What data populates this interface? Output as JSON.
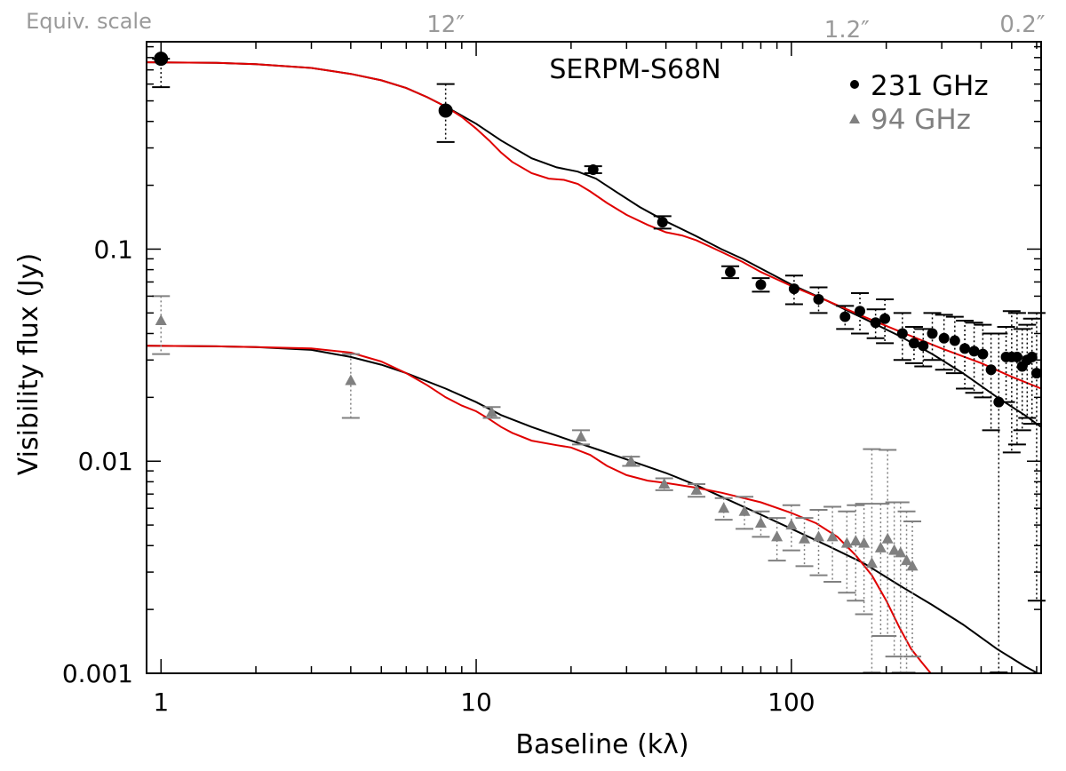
{
  "chart_data": {
    "type": "scatter",
    "title": "SERPM-S68N",
    "xlabel": "Baseline (kλ)",
    "ylabel": "Visibility flux (Jy)",
    "x_scale": "log",
    "y_scale": "log",
    "xlim": [
      0.9,
      620
    ],
    "ylim": [
      0.001,
      0.95
    ],
    "x_ticks": [
      {
        "value": 1,
        "label": "1"
      },
      {
        "value": 10,
        "label": "10"
      },
      {
        "value": 100,
        "label": "100"
      }
    ],
    "y_ticks": [
      {
        "value": 0.001,
        "label": "0.001"
      },
      {
        "value": 0.01,
        "label": "0.01"
      },
      {
        "value": 0.1,
        "label": "0.1"
      }
    ],
    "top_axis": {
      "label": "Equiv. scale",
      "ticks": [
        {
          "x": 8,
          "label": "12″"
        },
        {
          "x": 150,
          "label": "1.2″"
        },
        {
          "x": 600,
          "label": "0.2″"
        }
      ]
    },
    "grid": false,
    "legend_position": "top-right",
    "colors": {
      "series_231": "#000000",
      "series_94": "#808080",
      "model_red": "#e00000",
      "model_black": "#000000"
    },
    "series": [
      {
        "name": "231 GHz",
        "marker": "circle",
        "color": "#000000",
        "points": [
          {
            "x": 1.0,
            "y": 0.79,
            "lo": 0.58,
            "hi": 0.79
          },
          {
            "x": 8.0,
            "y": 0.45,
            "lo": 0.32,
            "hi": 0.6
          },
          {
            "x": 23.5,
            "y": 0.237,
            "lo": 0.228,
            "hi": 0.246
          },
          {
            "x": 39.0,
            "y": 0.134,
            "lo": 0.125,
            "hi": 0.143
          },
          {
            "x": 64.0,
            "y": 0.078,
            "lo": 0.073,
            "hi": 0.083
          },
          {
            "x": 80.0,
            "y": 0.068,
            "lo": 0.063,
            "hi": 0.073
          },
          {
            "x": 102.0,
            "y": 0.065,
            "lo": 0.055,
            "hi": 0.075
          },
          {
            "x": 122.0,
            "y": 0.058,
            "lo": 0.05,
            "hi": 0.066
          },
          {
            "x": 148.0,
            "y": 0.048,
            "lo": 0.042,
            "hi": 0.054
          },
          {
            "x": 165.0,
            "y": 0.051,
            "lo": 0.04,
            "hi": 0.062
          },
          {
            "x": 185.0,
            "y": 0.045,
            "lo": 0.038,
            "hi": 0.052
          },
          {
            "x": 198.0,
            "y": 0.047,
            "lo": 0.036,
            "hi": 0.058
          },
          {
            "x": 225.0,
            "y": 0.04,
            "lo": 0.03,
            "hi": 0.05
          },
          {
            "x": 245.0,
            "y": 0.036,
            "lo": 0.029,
            "hi": 0.043
          },
          {
            "x": 262.0,
            "y": 0.035,
            "lo": 0.028,
            "hi": 0.042
          },
          {
            "x": 280.0,
            "y": 0.04,
            "lo": 0.03,
            "hi": 0.05
          },
          {
            "x": 305.0,
            "y": 0.038,
            "lo": 0.027,
            "hi": 0.049
          },
          {
            "x": 330.0,
            "y": 0.037,
            "lo": 0.026,
            "hi": 0.048
          },
          {
            "x": 355.0,
            "y": 0.034,
            "lo": 0.022,
            "hi": 0.046
          },
          {
            "x": 380.0,
            "y": 0.033,
            "lo": 0.021,
            "hi": 0.045
          },
          {
            "x": 405.0,
            "y": 0.032,
            "lo": 0.02,
            "hi": 0.044
          },
          {
            "x": 430.0,
            "y": 0.027,
            "lo": 0.014,
            "hi": 0.04
          },
          {
            "x": 455.0,
            "y": 0.019,
            "lo": 0.001,
            "hi": 0.04
          },
          {
            "x": 480.0,
            "y": 0.031,
            "lo": 0.019,
            "hi": 0.043
          },
          {
            "x": 500.0,
            "y": 0.031,
            "lo": 0.011,
            "hi": 0.051
          },
          {
            "x": 520.0,
            "y": 0.031,
            "lo": 0.012,
            "hi": 0.05
          },
          {
            "x": 540.0,
            "y": 0.028,
            "lo": 0.014,
            "hi": 0.042
          },
          {
            "x": 560.0,
            "y": 0.03,
            "lo": 0.016,
            "hi": 0.044
          },
          {
            "x": 580.0,
            "y": 0.031,
            "lo": 0.015,
            "hi": 0.047
          },
          {
            "x": 600.0,
            "y": 0.026,
            "lo": 0.0022,
            "hi": 0.05
          }
        ]
      },
      {
        "name": "94 GHz",
        "marker": "triangle",
        "color": "#808080",
        "points": [
          {
            "x": 1.0,
            "y": 0.046,
            "lo": 0.032,
            "hi": 0.06
          },
          {
            "x": 4.0,
            "y": 0.024,
            "lo": 0.016,
            "hi": 0.032
          },
          {
            "x": 11.2,
            "y": 0.017,
            "lo": 0.016,
            "hi": 0.018
          },
          {
            "x": 21.5,
            "y": 0.013,
            "lo": 0.012,
            "hi": 0.014
          },
          {
            "x": 31.0,
            "y": 0.01,
            "lo": 0.0095,
            "hi": 0.0105
          },
          {
            "x": 39.5,
            "y": 0.0078,
            "lo": 0.0073,
            "hi": 0.0083
          },
          {
            "x": 50.0,
            "y": 0.0073,
            "lo": 0.0068,
            "hi": 0.0078
          },
          {
            "x": 61.0,
            "y": 0.006,
            "lo": 0.0053,
            "hi": 0.0067
          },
          {
            "x": 71.0,
            "y": 0.0058,
            "lo": 0.0048,
            "hi": 0.0068
          },
          {
            "x": 80.0,
            "y": 0.0051,
            "lo": 0.0044,
            "hi": 0.0058
          },
          {
            "x": 90.0,
            "y": 0.0044,
            "lo": 0.0034,
            "hi": 0.0054
          },
          {
            "x": 100.0,
            "y": 0.005,
            "lo": 0.0038,
            "hi": 0.0062
          },
          {
            "x": 110.0,
            "y": 0.0043,
            "lo": 0.0032,
            "hi": 0.0054
          },
          {
            "x": 122.0,
            "y": 0.0044,
            "lo": 0.0029,
            "hi": 0.0059
          },
          {
            "x": 135.0,
            "y": 0.0044,
            "lo": 0.0027,
            "hi": 0.0061
          },
          {
            "x": 150.0,
            "y": 0.0041,
            "lo": 0.0024,
            "hi": 0.0058
          },
          {
            "x": 160.0,
            "y": 0.0042,
            "lo": 0.0022,
            "hi": 0.0062
          },
          {
            "x": 170.0,
            "y": 0.0041,
            "lo": 0.0019,
            "hi": 0.0063
          },
          {
            "x": 180.0,
            "y": 0.0033,
            "lo": 0.001,
            "hi": 0.0114
          },
          {
            "x": 192.0,
            "y": 0.0039,
            "lo": 0.0015,
            "hi": 0.0063
          },
          {
            "x": 202.0,
            "y": 0.0043,
            "lo": 0.0015,
            "hi": 0.0113
          },
          {
            "x": 212.0,
            "y": 0.0038,
            "lo": 0.0012,
            "hi": 0.0064
          },
          {
            "x": 222.0,
            "y": 0.0037,
            "lo": 0.001,
            "hi": 0.0064
          },
          {
            "x": 232.0,
            "y": 0.0034,
            "lo": 0.001,
            "hi": 0.0058
          },
          {
            "x": 242.0,
            "y": 0.0032,
            "lo": 0.0012,
            "hi": 0.0052
          }
        ]
      }
    ],
    "models": [
      {
        "color": "#000000",
        "points": [
          [
            0.9,
            0.76
          ],
          [
            1.5,
            0.755
          ],
          [
            2,
            0.745
          ],
          [
            3,
            0.715
          ],
          [
            4,
            0.67
          ],
          [
            5,
            0.625
          ],
          [
            6,
            0.575
          ],
          [
            7,
            0.52
          ],
          [
            8,
            0.47
          ],
          [
            10,
            0.39
          ],
          [
            12,
            0.325
          ],
          [
            15,
            0.268
          ],
          [
            18,
            0.243
          ],
          [
            21,
            0.232
          ],
          [
            24,
            0.215
          ],
          [
            28,
            0.185
          ],
          [
            33,
            0.158
          ],
          [
            40,
            0.135
          ],
          [
            50,
            0.115
          ],
          [
            60,
            0.1
          ],
          [
            70,
            0.09
          ],
          [
            80,
            0.081
          ],
          [
            100,
            0.068
          ],
          [
            130,
            0.057
          ],
          [
            170,
            0.047
          ],
          [
            220,
            0.039
          ],
          [
            280,
            0.032
          ],
          [
            350,
            0.026
          ],
          [
            450,
            0.02
          ],
          [
            550,
            0.0165
          ],
          [
            620,
            0.0145
          ]
        ]
      },
      {
        "color": "#e00000",
        "points": [
          [
            0.9,
            0.76
          ],
          [
            1.5,
            0.755
          ],
          [
            2,
            0.745
          ],
          [
            3,
            0.715
          ],
          [
            4,
            0.67
          ],
          [
            5,
            0.625
          ],
          [
            6,
            0.575
          ],
          [
            7,
            0.52
          ],
          [
            8,
            0.47
          ],
          [
            9,
            0.42
          ],
          [
            10,
            0.37
          ],
          [
            11,
            0.325
          ],
          [
            12,
            0.285
          ],
          [
            13,
            0.258
          ],
          [
            15,
            0.228
          ],
          [
            17,
            0.215
          ],
          [
            19,
            0.212
          ],
          [
            21,
            0.203
          ],
          [
            23,
            0.187
          ],
          [
            26,
            0.165
          ],
          [
            30,
            0.145
          ],
          [
            35,
            0.13
          ],
          [
            40,
            0.12
          ],
          [
            45,
            0.116
          ],
          [
            50,
            0.11
          ],
          [
            60,
            0.097
          ],
          [
            70,
            0.087
          ],
          [
            80,
            0.078
          ],
          [
            100,
            0.067
          ],
          [
            130,
            0.057
          ],
          [
            170,
            0.048
          ],
          [
            220,
            0.041
          ],
          [
            300,
            0.034
          ],
          [
            400,
            0.029
          ],
          [
            500,
            0.025
          ],
          [
            620,
            0.022
          ]
        ]
      },
      {
        "color": "#000000",
        "points": [
          [
            0.9,
            0.035
          ],
          [
            1.5,
            0.0348
          ],
          [
            2,
            0.0345
          ],
          [
            3,
            0.0335
          ],
          [
            4,
            0.031
          ],
          [
            5,
            0.0285
          ],
          [
            6,
            0.026
          ],
          [
            8,
            0.022
          ],
          [
            10,
            0.019
          ],
          [
            12,
            0.0165
          ],
          [
            15,
            0.0145
          ],
          [
            20,
            0.0125
          ],
          [
            25,
            0.0112
          ],
          [
            30,
            0.0102
          ],
          [
            40,
            0.0088
          ],
          [
            50,
            0.0077
          ],
          [
            60,
            0.0068
          ],
          [
            80,
            0.0056
          ],
          [
            100,
            0.0048
          ],
          [
            130,
            0.004
          ],
          [
            170,
            0.0033
          ],
          [
            220,
            0.0026
          ],
          [
            280,
            0.0021
          ],
          [
            350,
            0.0017
          ],
          [
            450,
            0.0013
          ],
          [
            550,
            0.00108
          ],
          [
            620,
            0.00098
          ]
        ]
      },
      {
        "color": "#e00000",
        "points": [
          [
            0.9,
            0.035
          ],
          [
            1.5,
            0.0348
          ],
          [
            2,
            0.0345
          ],
          [
            3,
            0.034
          ],
          [
            4,
            0.0325
          ],
          [
            5,
            0.0295
          ],
          [
            6,
            0.026
          ],
          [
            7,
            0.0228
          ],
          [
            8,
            0.02
          ],
          [
            9,
            0.0183
          ],
          [
            10,
            0.0172
          ],
          [
            11,
            0.0158
          ],
          [
            12,
            0.0145
          ],
          [
            13,
            0.0136
          ],
          [
            15,
            0.0125
          ],
          [
            18,
            0.0119
          ],
          [
            20,
            0.0116
          ],
          [
            23,
            0.0107
          ],
          [
            26,
            0.0095
          ],
          [
            30,
            0.0086
          ],
          [
            35,
            0.0081
          ],
          [
            40,
            0.0079
          ],
          [
            50,
            0.0075
          ],
          [
            60,
            0.0071
          ],
          [
            80,
            0.0064
          ],
          [
            100,
            0.0057
          ],
          [
            120,
            0.0051
          ],
          [
            140,
            0.0044
          ],
          [
            160,
            0.0036
          ],
          [
            180,
            0.0029
          ],
          [
            200,
            0.0022
          ],
          [
            220,
            0.00165
          ],
          [
            240,
            0.0013
          ],
          [
            260,
            0.00112
          ],
          [
            280,
            0.00098
          ]
        ]
      }
    ]
  }
}
